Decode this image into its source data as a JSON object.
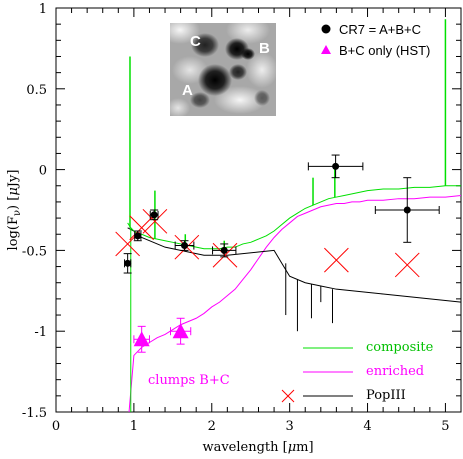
{
  "chart_data": {
    "type": "line",
    "xlabel_prefix": "wavelength [",
    "xlabel_mu": "μ",
    "xlabel_suffix": "m]",
    "ylabel_prefix": "log(F",
    "ylabel_sub": "ν",
    "ylabel_mid": ") [",
    "ylabel_mu": "μ",
    "ylabel_suffix": "Jy]",
    "xlim": [
      0,
      5.2
    ],
    "ylim": [
      -1.5,
      1.0
    ],
    "xticks": [
      0,
      1,
      2,
      3,
      4,
      5
    ],
    "yticks": [
      -1.5,
      -1,
      -0.5,
      0,
      0.5,
      1
    ],
    "ytick_labels": [
      "-1.5",
      "-1",
      "-0.5",
      "0",
      "0.5",
      "1"
    ],
    "grid": false,
    "series": [
      {
        "name": "composite",
        "color": "#00e000",
        "x": [
          0.92,
          0.96,
          1.0,
          1.05,
          1.1,
          1.2,
          1.3,
          1.4,
          1.5,
          1.6,
          1.7,
          1.8,
          1.9,
          2.0,
          2.1,
          2.2,
          2.3,
          2.4,
          2.5,
          2.6,
          2.7,
          2.8,
          2.9,
          3.0,
          3.1,
          3.2,
          3.3,
          3.4,
          3.5,
          3.6,
          3.7,
          3.8,
          3.9,
          4.0,
          4.2,
          4.4,
          4.6,
          4.8,
          5.0,
          5.2
        ],
        "y": [
          -0.33,
          -0.36,
          -0.38,
          -0.4,
          -0.4,
          -0.42,
          -0.43,
          -0.44,
          -0.45,
          -0.46,
          -0.47,
          -0.48,
          -0.49,
          -0.49,
          -0.49,
          -0.48,
          -0.48,
          -0.46,
          -0.45,
          -0.43,
          -0.41,
          -0.38,
          -0.34,
          -0.3,
          -0.27,
          -0.24,
          -0.22,
          -0.2,
          -0.18,
          -0.17,
          -0.16,
          -0.15,
          -0.14,
          -0.13,
          -0.12,
          -0.12,
          -0.11,
          -0.11,
          -0.1,
          -0.1
        ]
      },
      {
        "name": "enriched",
        "color": "#ff00ff",
        "x": [
          0.92,
          1.0,
          1.1,
          1.2,
          1.3,
          1.4,
          1.5,
          1.6,
          1.7,
          1.8,
          1.9,
          2.0,
          2.1,
          2.2,
          2.3,
          2.4,
          2.5,
          2.6,
          2.7,
          2.8,
          2.9,
          3.0,
          3.1,
          3.2,
          3.3,
          3.4,
          3.5,
          3.6,
          3.7,
          3.8,
          3.9,
          4.0,
          4.2,
          4.4,
          4.6,
          4.8,
          5.0,
          5.2
        ],
        "y": [
          -1.6,
          -1.15,
          -1.1,
          -1.07,
          -1.04,
          -1.02,
          -0.99,
          -0.96,
          -0.94,
          -0.92,
          -0.89,
          -0.85,
          -0.82,
          -0.78,
          -0.74,
          -0.68,
          -0.62,
          -0.55,
          -0.48,
          -0.42,
          -0.37,
          -0.33,
          -0.29,
          -0.27,
          -0.25,
          -0.23,
          -0.22,
          -0.21,
          -0.21,
          -0.2,
          -0.2,
          -0.19,
          -0.19,
          -0.18,
          -0.18,
          -0.17,
          -0.17,
          -0.16
        ]
      },
      {
        "name": "PopIII",
        "color": "#000000",
        "x": [
          0.92,
          1.0,
          1.1,
          1.2,
          1.3,
          1.4,
          1.5,
          1.6,
          1.7,
          1.8,
          1.9,
          2.0,
          2.2,
          2.4,
          2.6,
          2.8,
          2.9,
          3.0,
          3.2,
          3.4,
          3.6,
          3.8,
          4.0,
          4.2,
          4.4,
          4.6,
          4.8,
          5.0,
          5.2
        ],
        "y": [
          -0.36,
          -0.38,
          -0.42,
          -0.44,
          -0.46,
          -0.48,
          -0.49,
          -0.5,
          -0.51,
          -0.52,
          -0.53,
          -0.53,
          -0.53,
          -0.52,
          -0.51,
          -0.5,
          -0.58,
          -0.66,
          -0.7,
          -0.72,
          -0.74,
          -0.75,
          -0.76,
          -0.77,
          -0.78,
          -0.79,
          -0.8,
          -0.81,
          -0.82
        ]
      }
    ],
    "emission_lines": {
      "composite": [
        {
          "x": 0.95,
          "y_base": -0.36,
          "y_peak": 0.7
        },
        {
          "x": 1.27,
          "y_base": -0.43,
          "y_peak": -0.13
        },
        {
          "x": 1.66,
          "y_base": -0.46,
          "y_peak": -0.4
        },
        {
          "x": 2.16,
          "y_base": -0.49,
          "y_peak": -0.44
        },
        {
          "x": 3.3,
          "y_base": -0.22,
          "y_peak": -0.05
        },
        {
          "x": 3.58,
          "y_base": -0.17,
          "y_peak": 0.03
        },
        {
          "x": 5.0,
          "y_base": -0.1,
          "y_peak": 0.93
        }
      ],
      "popiii_absorption": [
        {
          "x": 2.95,
          "y_top": -0.58,
          "y_bottom": -0.9
        },
        {
          "x": 3.1,
          "y_top": -0.68,
          "y_bottom": -1.0
        },
        {
          "x": 3.28,
          "y_top": -0.71,
          "y_bottom": -0.92
        },
        {
          "x": 3.4,
          "y_top": -0.72,
          "y_bottom": -0.82
        },
        {
          "x": 3.55,
          "y_top": -0.74,
          "y_bottom": -0.95
        }
      ]
    },
    "points": {
      "cr7": {
        "label": "CR7 = A+B+C",
        "color": "#000000",
        "data": [
          {
            "x": 0.92,
            "y": -0.58,
            "xerr": 0.04,
            "yerr": 0.06
          },
          {
            "x": 1.05,
            "y": -0.41,
            "xerr": 0.04,
            "yerr": 0.03
          },
          {
            "x": 1.26,
            "y": -0.28,
            "xerr": 0.05,
            "yerr": 0.03
          },
          {
            "x": 1.65,
            "y": -0.47,
            "xerr": 0.12,
            "yerr": 0.03
          },
          {
            "x": 2.16,
            "y": -0.5,
            "xerr": 0.15,
            "yerr": 0.04
          },
          {
            "x": 3.59,
            "y": 0.02,
            "xerr": 0.35,
            "yerr": 0.07
          },
          {
            "x": 4.51,
            "y": -0.25,
            "xerr": 0.41,
            "yerr": 0.2
          }
        ]
      },
      "hst": {
        "label": "B+C only (HST)",
        "color": "#ff00ff",
        "data": [
          {
            "x": 1.1,
            "y": -1.05,
            "xerr": 0.1,
            "yerr": 0.08
          },
          {
            "x": 1.6,
            "y": -1.0,
            "xerr": 0.13,
            "yerr": 0.08
          }
        ]
      },
      "popiii_model": {
        "color": "#ff0000",
        "data": [
          {
            "x": 0.92,
            "y": -0.46
          },
          {
            "x": 1.1,
            "y": -0.36
          },
          {
            "x": 1.27,
            "y": -0.32
          },
          {
            "x": 1.68,
            "y": -0.48
          },
          {
            "x": 2.17,
            "y": -0.53
          },
          {
            "x": 3.6,
            "y": -0.56
          },
          {
            "x": 4.51,
            "y": -0.59
          }
        ]
      }
    },
    "annotations": {
      "clumps_label": "clumps B+C"
    },
    "inset": {
      "labels": [
        "C",
        "B",
        "A"
      ]
    }
  }
}
